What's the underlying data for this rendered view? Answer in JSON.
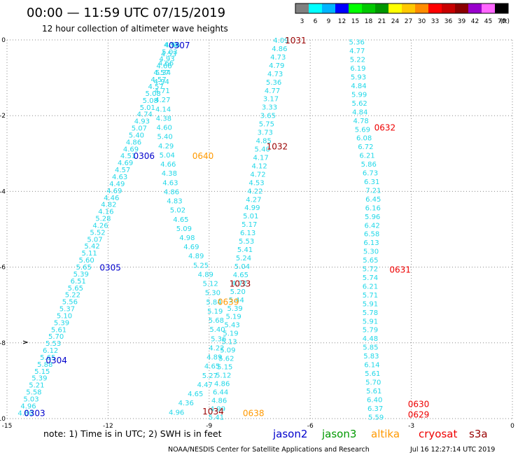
{
  "header": {
    "title": "00:00 — 11:59 UTC 07/15/2019",
    "subtitle": "12 hour collection of altimeter wave heights"
  },
  "scale": {
    "ticks": [
      "3",
      "6",
      "9",
      "12",
      "15",
      "18",
      "21",
      "24",
      "27",
      "30",
      "33",
      "36",
      "39",
      "42",
      "45",
      "70"
    ],
    "unit": "(ft)",
    "colors": [
      "#808080",
      "#00ffff",
      "#00b4ff",
      "#0000ff",
      "#00ff00",
      "#00c800",
      "#009600",
      "#ffff00",
      "#ffc800",
      "#ff8c00",
      "#ff0000",
      "#c80000",
      "#8b0000",
      "#9900cc",
      "#ff66ff",
      "#000000"
    ]
  },
  "footer": {
    "note": "note: 1) Time is in UTC; 2) SWH is in feet",
    "credit": "NOAA/NESDIS Center for Satellite Applications and Research",
    "timestamp": "Jul 16 12:27:14 UTC 2019"
  },
  "legend": [
    {
      "name": "jason2",
      "color": "#0000cc"
    },
    {
      "name": "jason3",
      "color": "#009900"
    },
    {
      "name": "altika",
      "color": "#ff9900"
    },
    {
      "name": "cryosat",
      "color": "#ee0000"
    },
    {
      "name": "s3a",
      "color": "#990000"
    }
  ],
  "chart_data": {
    "type": "scatter",
    "xlim": [
      -15,
      0
    ],
    "ylim": [
      -10,
      0
    ],
    "x_ticks": [
      -15,
      -12,
      -9,
      -6,
      -3,
      0
    ],
    "y_ticks": [
      0,
      -2,
      -4,
      -6,
      -8,
      -10
    ],
    "grid": true,
    "marker_color": "#22d8e8",
    "tracks": [
      {
        "id": "A",
        "labels": [
          "4.80",
          "4.96",
          "5.03",
          "5.58",
          "5.21",
          "5.39",
          "5.15",
          "5.88",
          "5.65",
          "6.12",
          "5.53",
          "5.70",
          "5.61",
          "5.39",
          "5.10",
          "5.37",
          "5.56",
          "5.22",
          "5.65",
          "6.51",
          "5.39",
          "5.65",
          "5.60",
          "5.11",
          "5.42",
          "5.07",
          "5.52",
          "4.26",
          "5.28",
          "4.16",
          "4.82",
          "4.46",
          "4.69",
          "4.49",
          "4.63",
          "4.57",
          "4.69",
          "4.51",
          "4.69",
          "4.86",
          "5.40",
          "5.07",
          "4.93",
          "4.74",
          "5.01",
          "5.08",
          "5.08",
          "4.57",
          "4.57",
          "4.57",
          "4.66",
          "4.93",
          "5.03",
          "4.56"
        ]
      },
      {
        "id": "B",
        "labels": [
          "4.96",
          "4.36",
          "4.65",
          "4.47",
          "5.27",
          "4.65",
          "4.89",
          "4.22",
          "5.36",
          "5.40",
          "5.68",
          "5.19",
          "5.84",
          "5.30",
          "5.12",
          "4.89",
          "5.25",
          "4.89",
          "4.69",
          "4.98",
          "5.09",
          "4.65",
          "5.02",
          "4.83",
          "4.86",
          "4.63",
          "4.38",
          "4.66",
          "5.04",
          "4.29",
          "5.40",
          "4.60",
          "4.38",
          "4.14",
          "4.27",
          "4.71",
          "4.94",
          "5.34",
          "4.66",
          "4.53",
          "4.98"
        ]
      },
      {
        "id": "C",
        "labels": [
          "5.41",
          "4.99",
          "4.86",
          "6.44",
          "4.86",
          "5.12",
          "5.15",
          "5.62",
          "5.09",
          "5.13",
          "5.19",
          "5.43",
          "5.19",
          "5.39",
          "5.44",
          "5.20",
          "4.72",
          "4.65",
          "5.04",
          "5.24",
          "5.41",
          "5.53",
          "6.13",
          "5.17",
          "5.01",
          "4.99",
          "4.27",
          "4.22",
          "4.53",
          "4.72",
          "4.12",
          "4.17",
          "5.40",
          "4.85",
          "3.73",
          "5.75",
          "3.65",
          "3.33",
          "3.17",
          "4.77",
          "5.36",
          "4.73",
          "4.79",
          "4.73",
          "4.86",
          "4.09"
        ]
      },
      {
        "id": "D",
        "labels": [
          "5.59",
          "6.37",
          "6.40",
          "5.61",
          "5.70",
          "5.61",
          "6.14",
          "5.83",
          "5.85",
          "4.48",
          "5.79",
          "5.91",
          "5.78",
          "5.91",
          "5.71",
          "6.21",
          "5.74",
          "5.72",
          "5.65",
          "5.30",
          "6.13",
          "6.58",
          "6.42",
          "5.96",
          "6.16",
          "6.45",
          "7.21",
          "6.31",
          "6.73",
          "5.86",
          "6.21",
          "6.72",
          "6.08",
          "5.69",
          "4.78",
          "4.84",
          "5.62",
          "5.99",
          "4.84",
          "5.93",
          "6.19",
          "5.22",
          "4.77",
          "5.36"
        ]
      }
    ],
    "passes": [
      {
        "label": "0303",
        "sat": "jason2",
        "x": -14.5,
        "y": -9.84
      },
      {
        "label": "0304",
        "sat": "jason2",
        "x": -13.85,
        "y": -8.45
      },
      {
        "label": "0305",
        "sat": "jason2",
        "x": -12.25,
        "y": -6.0
      },
      {
        "label": "0306",
        "sat": "jason2",
        "x": -11.25,
        "y": -3.05
      },
      {
        "label": "0307",
        "sat": "jason2",
        "x": -10.2,
        "y": -0.13
      },
      {
        "label": "0640",
        "sat": "altika",
        "x": -9.5,
        "y": -3.05
      },
      {
        "label": "0639",
        "sat": "altika",
        "x": -8.75,
        "y": -6.9
      },
      {
        "label": "0638",
        "sat": "altika",
        "x": -8.0,
        "y": -9.84
      },
      {
        "label": "1034",
        "sat": "s3a",
        "x": -9.2,
        "y": -9.8
      },
      {
        "label": "1033",
        "sat": "s3a",
        "x": -8.4,
        "y": -6.42
      },
      {
        "label": "1032",
        "sat": "s3a",
        "x": -7.3,
        "y": -2.8
      },
      {
        "label": "1031",
        "sat": "s3a",
        "x": -6.75,
        "y": 0.0
      },
      {
        "label": "0632",
        "sat": "cryosat",
        "x": -4.1,
        "y": -2.3
      },
      {
        "label": "0631",
        "sat": "cryosat",
        "x": -3.65,
        "y": -6.05
      },
      {
        "label": "0630",
        "sat": "cryosat",
        "x": -3.1,
        "y": -9.6
      },
      {
        "label": "0629",
        "sat": "cryosat",
        "x": -3.1,
        "y": -9.88
      }
    ]
  }
}
